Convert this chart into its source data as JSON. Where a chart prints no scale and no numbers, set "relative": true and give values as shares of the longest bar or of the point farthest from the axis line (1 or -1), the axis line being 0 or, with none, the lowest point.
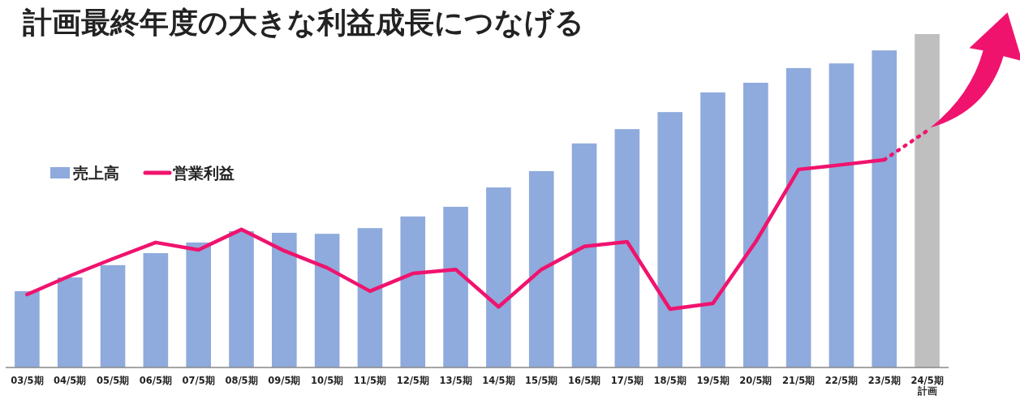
{
  "chart_data": {
    "type": "bar",
    "title": "計画最終年度の大きな利益成長につなげる",
    "relative": true,
    "legend": "left",
    "grid": false,
    "categories": [
      "03/5期",
      "04/5期",
      "05/5期",
      "06/5期",
      "07/5期",
      "08/5期",
      "09/5期",
      "10/5期",
      "11/5期",
      "12/5期",
      "13/5期",
      "14/5期",
      "15/5期",
      "16/5期",
      "17/5期",
      "18/5期",
      "19/5期",
      "20/5期",
      "21/5期",
      "22/5期",
      "23/5期",
      "24/5期計画"
    ],
    "series": [
      {
        "name": "売上高",
        "color": "#8faadc",
        "colors": [
          "#8faadc",
          "#8faadc",
          "#8faadc",
          "#8faadc",
          "#8faadc",
          "#8faadc",
          "#8faadc",
          "#8faadc",
          "#8faadc",
          "#8faadc",
          "#8faadc",
          "#8faadc",
          "#8faadc",
          "#8faadc",
          "#8faadc",
          "#8faadc",
          "#8faadc",
          "#8faadc",
          "#8faadc",
          "#8faadc",
          "#8faadc",
          "#bfbfbf"
        ],
        "values": [
          0.229,
          0.27,
          0.307,
          0.343,
          0.375,
          0.409,
          0.404,
          0.401,
          0.418,
          0.453,
          0.482,
          0.54,
          0.589,
          0.672,
          0.715,
          0.766,
          0.825,
          0.854,
          0.898,
          0.912,
          0.951,
          1
        ]
      },
      {
        "name": "営業利益",
        "type": "line",
        "color": "#f0136e",
        "line_style": "solid",
        "values": [
          0.219,
          0.275,
          0.326,
          0.375,
          0.353,
          0.414,
          0.35,
          0.299,
          0.229,
          0.282,
          0.294,
          0.182,
          0.294,
          0.363,
          0.377,
          0.175,
          0.192,
          0.377,
          0.594,
          0.608,
          0.623,
          null
        ]
      },
      {
        "type": "line",
        "color": "#f0136e",
        "line_style": "dotted",
        "values": [
          null,
          null,
          null,
          null,
          null,
          null,
          null,
          null,
          null,
          null,
          null,
          null,
          null,
          null,
          null,
          null,
          null,
          null,
          null,
          null,
          0.623,
          0.71
        ]
      }
    ]
  }
}
